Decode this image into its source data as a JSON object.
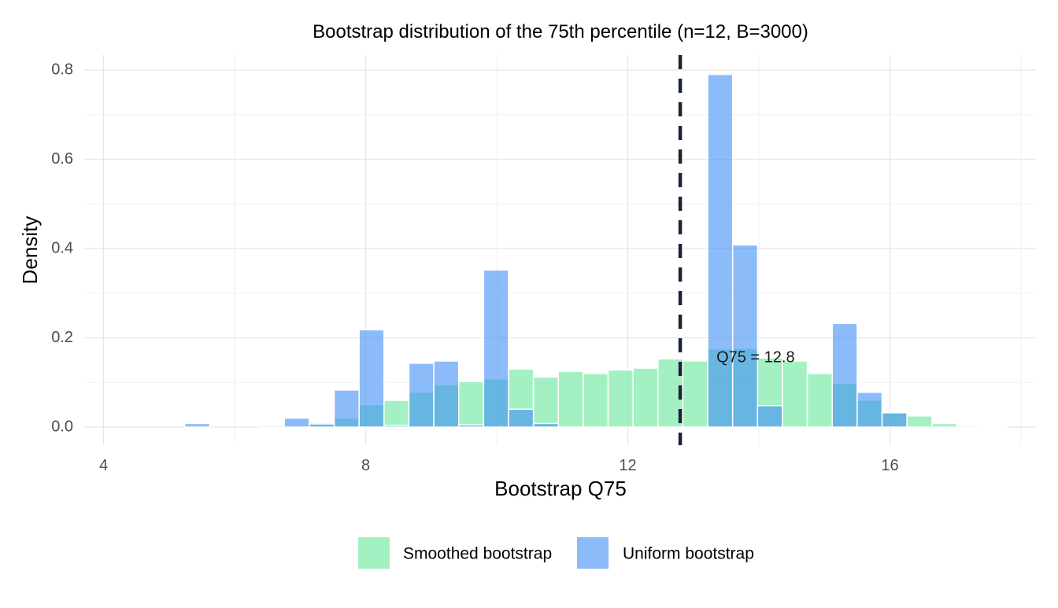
{
  "chart_data": {
    "type": "bar",
    "subtype": "overlaid-histogram",
    "title": "Bootstrap distribution of the 75th percentile (n=12, B=3000)",
    "xlabel": "Bootstrap Q75",
    "ylabel": "Density",
    "xlim": [
      3.9,
      18.0
    ],
    "ylim": [
      -0.03,
      0.84
    ],
    "x_ticks": [
      4,
      8,
      12,
      16
    ],
    "x_tick_labels": [
      "4",
      "8",
      "12",
      "16"
    ],
    "y_ticks": [
      0.0,
      0.2,
      0.4,
      0.6,
      0.8
    ],
    "y_tick_labels": [
      "0.0",
      "0.2",
      "0.4",
      "0.6",
      "0.8"
    ],
    "grid": true,
    "legend_position": "bottom",
    "bin_width": 0.38,
    "bin_start": 4.1,
    "series": [
      {
        "name": "Smoothed bootstrap",
        "color": "#66e899",
        "opacity": 0.6,
        "values": [
          0,
          0,
          0,
          0,
          0,
          0,
          0,
          0.002,
          0.01,
          0.02,
          0.05,
          0.06,
          0.078,
          0.095,
          0.102,
          0.108,
          0.13,
          0.112,
          0.125,
          0.12,
          0.128,
          0.132,
          0.153,
          0.148,
          0.175,
          0.176,
          0.155,
          0.148,
          0.12,
          0.098,
          0.06,
          0.035,
          0.025,
          0.008,
          0.003,
          0.001,
          0,
          0
        ]
      },
      {
        "name": "Uniform bootstrap",
        "color": "#3f8ef5",
        "opacity": 0.6,
        "values": [
          0,
          0,
          0,
          0.008,
          0,
          0,
          0.003,
          0.02,
          0.007,
          0.083,
          0.218,
          0.004,
          0.143,
          0.148,
          0.005,
          0.352,
          0.04,
          0.008,
          0,
          0,
          0,
          0,
          0,
          0,
          0.79,
          0.408,
          0.048,
          0,
          0,
          0.232,
          0.078,
          0.032,
          0,
          0,
          0,
          0,
          0,
          0
        ]
      }
    ],
    "vline": {
      "x": 12.8,
      "style": "dashed",
      "color": "#1a2433",
      "label": "Q75 = 12.8",
      "label_x": 13.95,
      "label_y": 0.155
    }
  }
}
